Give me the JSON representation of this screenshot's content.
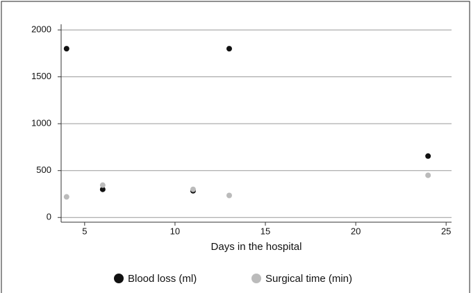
{
  "chart_data": {
    "type": "scatter",
    "x_label": "Days in the hospital",
    "xlim": [
      3.7,
      25.3
    ],
    "xticks": [
      5,
      10,
      15,
      20,
      25
    ],
    "ylim": [
      -50,
      2060
    ],
    "yticks": [
      0,
      500,
      1000,
      1500,
      2000
    ],
    "grid": true,
    "legend": "bottom",
    "series": [
      {
        "name": "Blood loss (ml)",
        "color": "#111111",
        "x": [
          4,
          6,
          11,
          13,
          24
        ],
        "values": [
          1800,
          300,
          285,
          1800,
          655
        ]
      },
      {
        "name": "Surgical time (min)",
        "color": "#bbbbbb",
        "x": [
          4,
          6,
          11,
          13,
          24
        ],
        "values": [
          220,
          345,
          300,
          235,
          450
        ]
      }
    ]
  }
}
